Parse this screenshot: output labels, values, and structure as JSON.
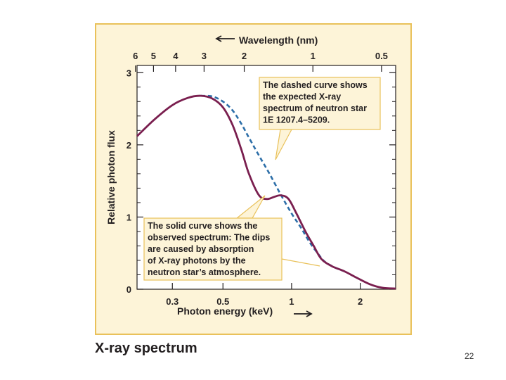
{
  "caption": "X-ray spectrum",
  "page_number": "22",
  "colors": {
    "panel_bg": "#fdf4d8",
    "panel_border": "#e9c15a",
    "plot_bg": "#ffffff",
    "observed": "#7a1f4f",
    "expected": "#2c6ea8",
    "callout_bg": "#fdf4d8",
    "callout_border": "#e9c15a",
    "text": "#231f20"
  },
  "chart_data": {
    "type": "line",
    "x_scale": "log",
    "xlabel": "Photon energy (keV)",
    "ylabel": "Relative photon flux",
    "top_axis_label": "Wavelength (nm)",
    "xlim": [
      0.21,
      2.86
    ],
    "ylim": [
      0,
      3.1
    ],
    "x_ticks": [
      0.3,
      0.5,
      1,
      2
    ],
    "x_tick_labels": [
      "0.3",
      "0.5",
      "1",
      "2"
    ],
    "y_ticks": [
      0,
      1,
      2,
      3
    ],
    "y_tick_labels": [
      "0",
      "1",
      "2",
      "3"
    ],
    "top_ticks_nm": [
      6,
      5,
      4,
      3,
      2,
      1,
      0.5
    ],
    "top_tick_labels": [
      "6",
      "5",
      "4",
      "3",
      "2",
      "1",
      "0.5"
    ],
    "series": [
      {
        "name": "Observed spectrum",
        "style": "solid",
        "x": [
          0.21,
          0.25,
          0.3,
          0.35,
          0.4,
          0.45,
          0.5,
          0.55,
          0.6,
          0.65,
          0.72,
          0.78,
          0.84,
          0.9,
          0.97,
          1.05,
          1.15,
          1.25,
          1.35,
          1.5,
          1.7,
          1.9,
          2.2,
          2.5,
          2.86
        ],
        "y": [
          2.12,
          2.35,
          2.55,
          2.65,
          2.68,
          2.64,
          2.52,
          2.28,
          1.95,
          1.6,
          1.3,
          1.25,
          1.28,
          1.3,
          1.25,
          1.05,
          0.8,
          0.6,
          0.42,
          0.32,
          0.25,
          0.17,
          0.07,
          0.02,
          0.01
        ]
      },
      {
        "name": "Expected spectrum",
        "style": "dashed",
        "x": [
          0.4,
          0.45,
          0.5,
          0.55,
          0.6,
          0.65,
          0.72,
          0.8,
          0.9,
          1.0,
          1.1,
          1.2,
          1.3,
          1.4,
          1.55,
          1.7
        ],
        "y": [
          2.68,
          2.67,
          2.6,
          2.48,
          2.3,
          2.1,
          1.85,
          1.6,
          1.3,
          1.05,
          0.85,
          0.65,
          0.5,
          0.38,
          0.3,
          0.25
        ]
      }
    ],
    "annotations": [
      {
        "id": "expected",
        "lines": [
          "The dashed curve shows",
          "the expected X-ray",
          "spectrum of neutron star",
          "1E 1207.4–5209."
        ]
      },
      {
        "id": "observed",
        "lines": [
          "The solid curve shows the",
          "observed spectrum: The dips",
          "are caused by absorption",
          "of X-ray photons by the",
          "neutron star’s atmosphere."
        ]
      }
    ]
  }
}
